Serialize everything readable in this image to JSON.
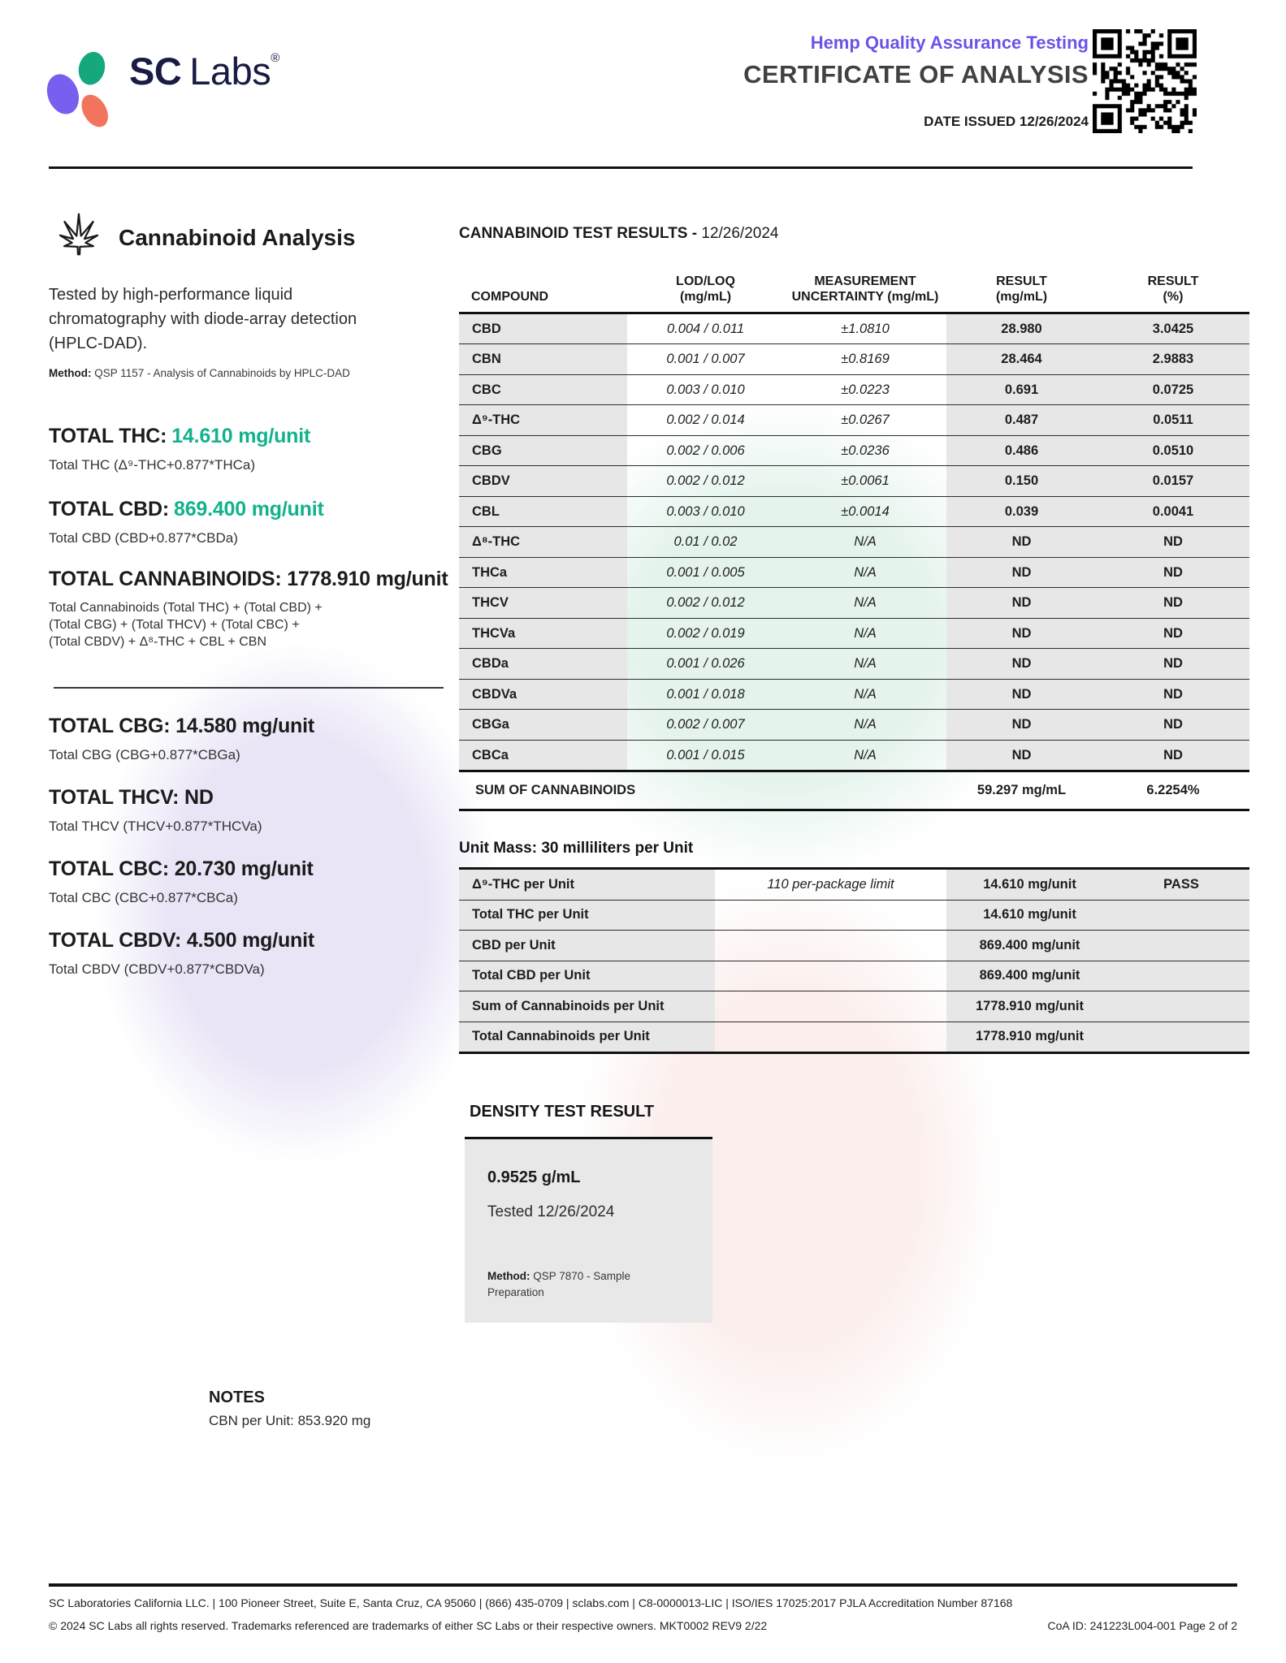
{
  "theme": {
    "accent_teal": "#12b28c",
    "accent_purple": "#6d52e8",
    "ink": "#1e1e1e"
  },
  "header": {
    "brand_sc": "SC",
    "brand_labs": "Labs",
    "brand_reg": "®",
    "program": "Hemp Quality Assurance Testing",
    "title": "CERTIFICATE OF ANALYSIS",
    "date_issued": "DATE ISSUED 12/26/2024"
  },
  "left": {
    "section_title": "Cannabinoid Analysis",
    "description": "Tested by high-performance liquid chromatography with diode-array detection (HPLC-DAD).",
    "method_label": "Method:",
    "method_text": "QSP 1157 - Analysis of Cannabinoids by HPLC-DAD",
    "total_thc": {
      "label": "TOTAL THC:",
      "value": "14.610 mg/unit",
      "formula": "Total THC (Δ⁹-THC+0.877*THCa)"
    },
    "total_cbd": {
      "label": "TOTAL CBD:",
      "value": "869.400 mg/unit",
      "formula": "Total CBD (CBD+0.877*CBDa)"
    },
    "total_cannabinoids": {
      "label": "TOTAL CANNABINOIDS: 1778.910 mg/unit",
      "formula_line1": "Total Cannabinoids (Total THC) + (Total CBD) +",
      "formula_line2": "(Total CBG) + (Total THCV) + (Total CBC) +",
      "formula_line3": "(Total CBDV) + Δ⁸-THC + CBL + CBN"
    },
    "total_cbg": {
      "label": "TOTAL CBG: 14.580 mg/unit",
      "formula": "Total CBG (CBG+0.877*CBGa)"
    },
    "total_thcv": {
      "label": "TOTAL THCV: ND",
      "formula": "Total THCV (THCV+0.877*THCVa)"
    },
    "total_cbc": {
      "label": "TOTAL CBC: 20.730 mg/unit",
      "formula": "Total CBC (CBC+0.877*CBCa)"
    },
    "total_cbdv": {
      "label": "TOTAL CBDV: 4.500 mg/unit",
      "formula": "Total CBDV (CBDV+0.877*CBDVa)"
    }
  },
  "results": {
    "title": "CANNABINOID TEST RESULTS -",
    "title_date": "12/26/2024",
    "col_compound": "COMPOUND",
    "col_lod_1": "LOD/LOQ",
    "col_lod_2": "(mg/mL)",
    "col_unc_1": "MEASUREMENT",
    "col_unc_2": "UNCERTAINTY (mg/mL)",
    "col_res_mg_1": "RESULT",
    "col_res_mg_2": "(mg/mL)",
    "col_res_pct_1": "RESULT",
    "col_res_pct_2": "(%)",
    "rows": [
      {
        "compound": "CBD",
        "lod": "0.004 / 0.011",
        "unc": "±1.0810",
        "mg": "28.980",
        "pct": "3.0425"
      },
      {
        "compound": "CBN",
        "lod": "0.001 / 0.007",
        "unc": "±0.8169",
        "mg": "28.464",
        "pct": "2.9883"
      },
      {
        "compound": "CBC",
        "lod": "0.003 / 0.010",
        "unc": "±0.0223",
        "mg": "0.691",
        "pct": "0.0725"
      },
      {
        "compound": "Δ⁹-THC",
        "lod": "0.002 / 0.014",
        "unc": "±0.0267",
        "mg": "0.487",
        "pct": "0.0511"
      },
      {
        "compound": "CBG",
        "lod": "0.002 / 0.006",
        "unc": "±0.0236",
        "mg": "0.486",
        "pct": "0.0510"
      },
      {
        "compound": "CBDV",
        "lod": "0.002 / 0.012",
        "unc": "±0.0061",
        "mg": "0.150",
        "pct": "0.0157"
      },
      {
        "compound": "CBL",
        "lod": "0.003 / 0.010",
        "unc": "±0.0014",
        "mg": "0.039",
        "pct": "0.0041"
      },
      {
        "compound": "Δ⁸-THC",
        "lod": "0.01 / 0.02",
        "unc": "N/A",
        "mg": "ND",
        "pct": "ND"
      },
      {
        "compound": "THCa",
        "lod": "0.001 / 0.005",
        "unc": "N/A",
        "mg": "ND",
        "pct": "ND"
      },
      {
        "compound": "THCV",
        "lod": "0.002 / 0.012",
        "unc": "N/A",
        "mg": "ND",
        "pct": "ND"
      },
      {
        "compound": "THCVa",
        "lod": "0.002 / 0.019",
        "unc": "N/A",
        "mg": "ND",
        "pct": "ND"
      },
      {
        "compound": "CBDa",
        "lod": "0.001 / 0.026",
        "unc": "N/A",
        "mg": "ND",
        "pct": "ND"
      },
      {
        "compound": "CBDVa",
        "lod": "0.001 / 0.018",
        "unc": "N/A",
        "mg": "ND",
        "pct": "ND"
      },
      {
        "compound": "CBGa",
        "lod": "0.002 / 0.007",
        "unc": "N/A",
        "mg": "ND",
        "pct": "ND"
      },
      {
        "compound": "CBCa",
        "lod": "0.001 / 0.015",
        "unc": "N/A",
        "mg": "ND",
        "pct": "ND"
      }
    ],
    "sum_label": "SUM OF CANNABINOIDS",
    "sum_mg": "59.297 mg/mL",
    "sum_pct": "6.2254%"
  },
  "unit_mass": {
    "title": "Unit Mass: 30 milliliters per Unit",
    "rows": [
      {
        "label": "Δ⁹-THC per Unit",
        "limit": "110 per-package limit",
        "value": "14.610 mg/unit",
        "status": "PASS"
      },
      {
        "label": "Total THC per Unit",
        "limit": "",
        "value": "14.610 mg/unit",
        "status": ""
      },
      {
        "label": "CBD per Unit",
        "limit": "",
        "value": "869.400 mg/unit",
        "status": ""
      },
      {
        "label": "Total CBD per Unit",
        "limit": "",
        "value": "869.400 mg/unit",
        "status": ""
      },
      {
        "label": "Sum of Cannabinoids per Unit",
        "limit": "",
        "value": "1778.910 mg/unit",
        "status": ""
      },
      {
        "label": "Total Cannabinoids per Unit",
        "limit": "",
        "value": "1778.910 mg/unit",
        "status": ""
      }
    ]
  },
  "density": {
    "title": "DENSITY TEST RESULT",
    "value": "0.9525 g/mL",
    "tested": "Tested 12/26/2024",
    "method_label": "Method:",
    "method_text": "QSP 7870 - Sample Preparation"
  },
  "notes": {
    "title": "NOTES",
    "text": "CBN per Unit: 853.920 mg"
  },
  "footer": {
    "line1": "SC Laboratories California LLC. | 100 Pioneer Street, Suite E, Santa Cruz, CA 95060 | (866) 435-0709 | sclabs.com | C8-0000013-LIC | ISO/IES 17025:2017 PJLA Accreditation Number 87168",
    "line2": "© 2024 SC Labs all rights reserved. Trademarks referenced are trademarks of either SC Labs or their respective owners. MKT0002 REV9 2/22",
    "coa": "CoA ID: 241223L004-001  Page 2 of 2"
  }
}
